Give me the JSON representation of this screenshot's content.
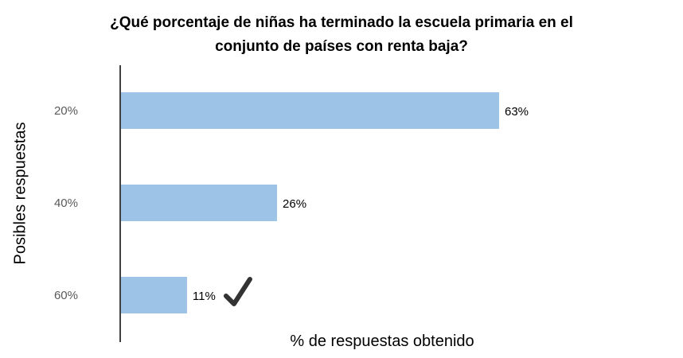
{
  "chart_data": {
    "type": "bar",
    "orientation": "horizontal",
    "title_lines": [
      "¿Qué porcentaje de niñas ha terminado la escuela primaria en el",
      "conjunto de países con renta baja?"
    ],
    "ylabel": "Posibles respuestas",
    "xlabel": "% de respuestas obtenido",
    "categories": [
      "20%",
      "40%",
      "60%"
    ],
    "values": [
      63,
      26,
      11
    ],
    "value_labels": [
      "63%",
      "26%",
      "11%"
    ],
    "value_unit": "%",
    "correct_answer": "60%",
    "correct_marker_icon": "checkmark-icon",
    "bar_color": "#9DC3E6",
    "grid": false,
    "legend": "none"
  }
}
